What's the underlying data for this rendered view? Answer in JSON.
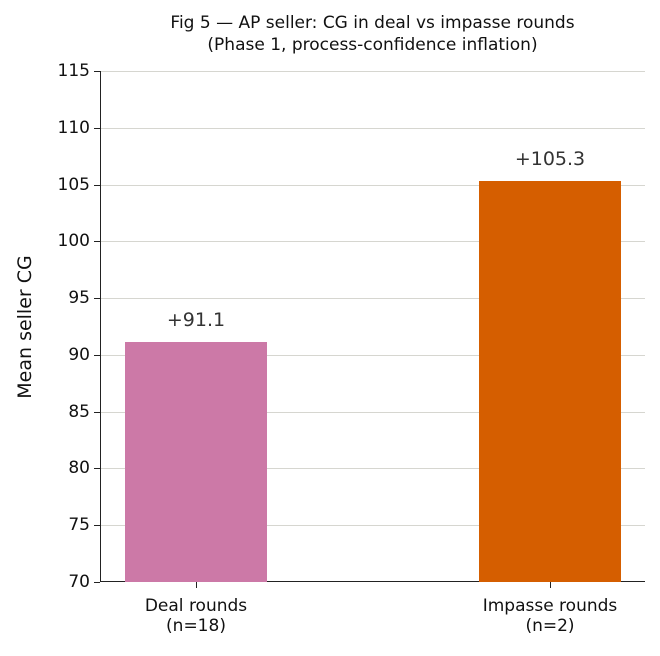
{
  "chart_data": {
    "type": "bar",
    "title": "Fig 5 — AP seller: CG in deal vs impasse rounds",
    "subtitle": "(Phase 1, process-confidence inflation)",
    "xlabel": "",
    "ylabel": "Mean seller CG",
    "categories": [
      "Deal rounds\n(n=18)",
      "Impasse rounds\n(n=2)"
    ],
    "category_lines": [
      [
        "Deal rounds",
        "(n=18)"
      ],
      [
        "Impasse rounds",
        "(n=2)"
      ]
    ],
    "values": [
      91.1,
      105.3
    ],
    "value_labels": [
      "+91.1",
      "+105.3"
    ],
    "colors": [
      "#cc79a7",
      "#d55e00"
    ],
    "ylim": [
      70,
      115
    ],
    "yticks": [
      70,
      75,
      80,
      85,
      90,
      95,
      100,
      105,
      110,
      115
    ],
    "grid": "horizontal",
    "legend": null
  }
}
